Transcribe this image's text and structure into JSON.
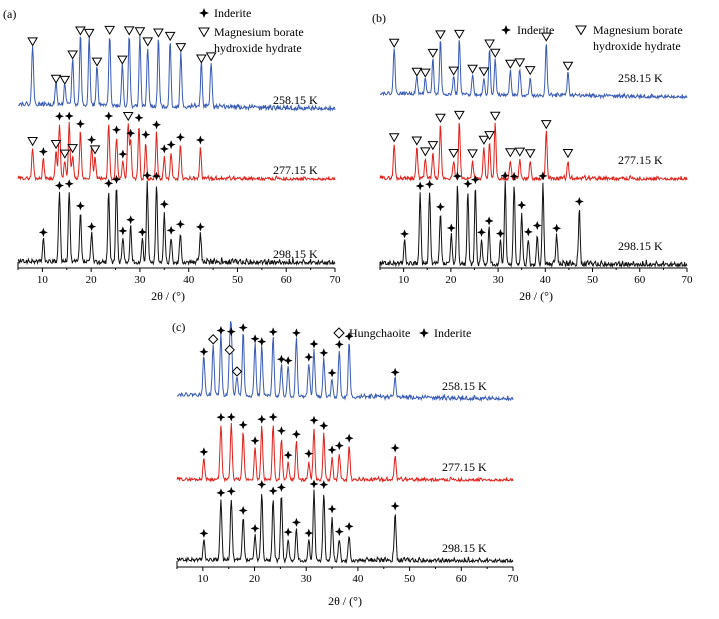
{
  "chart_data": [
    {
      "panel": "(a)",
      "type": "line",
      "xlabel": "2θ / (°)",
      "xlim": [
        5,
        70
      ],
      "xticks": [
        10,
        20,
        30,
        40,
        50,
        60,
        70
      ],
      "legend": [
        {
          "marker": "star",
          "label": "Inderite"
        },
        {
          "marker": "triangle",
          "label": "Magnesium borate hydroxide hydrate"
        }
      ],
      "series": [
        {
          "name": "258.15 K",
          "color": "#3a5bb5",
          "marker": "triangle",
          "peaks": [
            8.0,
            12.8,
            14.6,
            16.2,
            17.8,
            19.6,
            21.2,
            23.8,
            26.4,
            27.8,
            30.0,
            31.6,
            33.8,
            36.2,
            38.4,
            42.6,
            44.6
          ]
        },
        {
          "name": "277.15 K",
          "color": "#e0201b",
          "marker": "triangle_star",
          "triangles": [
            8.0,
            12.8,
            14.6,
            16.2,
            20.8,
            27.6
          ],
          "stars": [
            10.2,
            13.5,
            15.5,
            17.8,
            20.1,
            23.6,
            25.2,
            26.5,
            28.1,
            29.8,
            31.2,
            33.4,
            35.0,
            36.4,
            38.3,
            42.4
          ]
        },
        {
          "name": "298.15 K",
          "color": "#111111",
          "marker": "star",
          "peaks": [
            10.2,
            13.5,
            15.5,
            17.8,
            20.1,
            23.6,
            25.2,
            26.5,
            28.1,
            30.5,
            31.5,
            33.4,
            35.0,
            36.4,
            38.3,
            42.4
          ]
        }
      ]
    },
    {
      "panel": "(b)",
      "type": "line",
      "xlabel": "2θ / (°)",
      "xlim": [
        5,
        70
      ],
      "xticks": [
        10,
        20,
        30,
        40,
        50,
        60,
        70
      ],
      "legend": [
        {
          "marker": "star",
          "label": "Inderite"
        },
        {
          "marker": "triangle",
          "label": "Magnesium borate hydroxide hydrate"
        }
      ],
      "series": [
        {
          "name": "258.15 K",
          "color": "#3a5bb5",
          "marker": "triangle",
          "peaks": [
            8.0,
            12.8,
            14.6,
            16.2,
            17.8,
            20.6,
            21.8,
            24.6,
            27.0,
            28.2,
            29.4,
            32.6,
            34.6,
            36.8,
            40.2,
            44.8
          ]
        },
        {
          "name": "277.15 K",
          "color": "#e0201b",
          "marker": "triangle",
          "peaks": [
            8.0,
            12.8,
            14.6,
            16.2,
            17.8,
            20.6,
            21.8,
            24.6,
            27.0,
            28.2,
            29.4,
            32.6,
            34.6,
            36.8,
            40.2,
            44.8
          ]
        },
        {
          "name": "298.15 K",
          "color": "#111111",
          "marker": "star",
          "peaks": [
            10.2,
            13.5,
            15.5,
            17.8,
            20.1,
            21.4,
            23.6,
            25.2,
            26.5,
            28.1,
            30.5,
            31.5,
            33.4,
            35.0,
            36.4,
            38.3,
            39.5,
            42.4,
            47.2
          ]
        }
      ]
    },
    {
      "panel": "(c)",
      "type": "line",
      "xlabel": "2θ / (°)",
      "xlim": [
        5,
        70
      ],
      "xticks": [
        10,
        20,
        30,
        40,
        50,
        60,
        70
      ],
      "legend": [
        {
          "marker": "diamond",
          "label": "Hungchaoite"
        },
        {
          "marker": "star",
          "label": "Inderite"
        }
      ],
      "series": [
        {
          "name": "258.15 K",
          "color": "#3a5bb5",
          "marker": "star_diamond",
          "stars": [
            10.2,
            13.5,
            15.5,
            17.8,
            20.1,
            21.4,
            23.6,
            25.2,
            26.5,
            28.1,
            30.5,
            31.5,
            33.4,
            35.0,
            36.4,
            38.3,
            47.2
          ],
          "diamonds": [
            12.0,
            15.2,
            16.6
          ]
        },
        {
          "name": "277.15 K",
          "color": "#e0201b",
          "marker": "star",
          "peaks": [
            10.2,
            13.5,
            15.5,
            17.8,
            20.1,
            21.4,
            23.6,
            25.2,
            26.5,
            28.1,
            30.5,
            31.5,
            33.4,
            35.0,
            36.4,
            38.3,
            47.2
          ]
        },
        {
          "name": "298.15 K",
          "color": "#111111",
          "marker": "star",
          "peaks": [
            10.2,
            13.5,
            15.5,
            17.8,
            20.1,
            21.4,
            23.6,
            25.2,
            26.5,
            28.1,
            30.5,
            31.5,
            33.4,
            35.0,
            36.4,
            38.3,
            47.2
          ]
        }
      ]
    }
  ]
}
